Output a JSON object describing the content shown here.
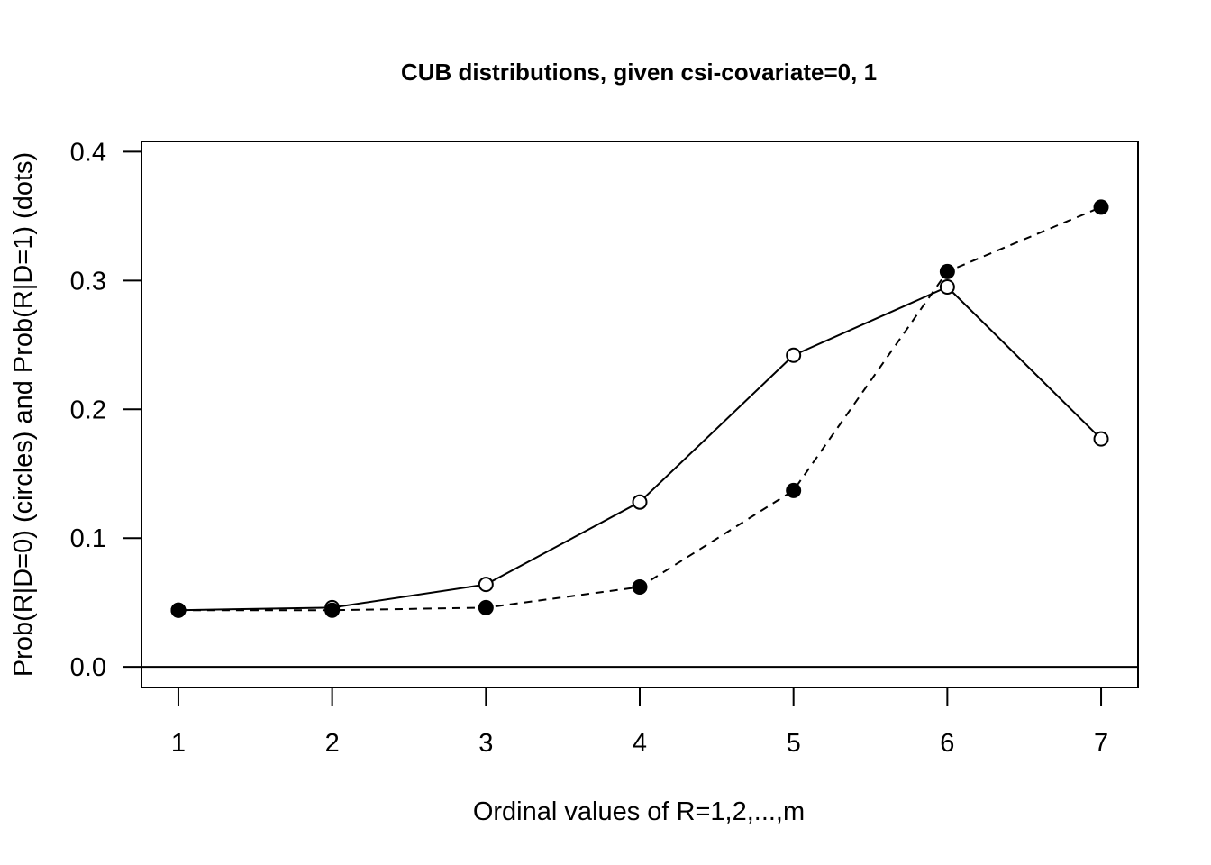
{
  "chart_data": {
    "type": "line",
    "title": "CUB distributions, given csi-covariate=0, 1",
    "xlabel": "Ordinal values of R=1,2,...,m",
    "ylabel": "Prob(R|D=0) (circles) and  Prob(R|D=1) (dots)",
    "x": [
      1,
      2,
      3,
      4,
      5,
      6,
      7
    ],
    "x_tick_labels": [
      "1",
      "2",
      "3",
      "4",
      "5",
      "6",
      "7"
    ],
    "y_ticks": [
      0.0,
      0.1,
      0.2,
      0.3,
      0.4
    ],
    "y_tick_labels": [
      "0.0",
      "0.1",
      "0.2",
      "0.3",
      "0.4"
    ],
    "xlim": [
      0.76,
      7.24
    ],
    "ylim": [
      -0.016,
      0.408
    ],
    "grid": false,
    "legend": "none",
    "reference_line_y": 0,
    "series": [
      {
        "marker": "open-circle",
        "line_style": "solid",
        "color": "#000000",
        "values": [
          0.044,
          0.046,
          0.064,
          0.128,
          0.242,
          0.295,
          0.177
        ]
      },
      {
        "marker": "filled-dot",
        "line_style": "dashed",
        "color": "#000000",
        "values": [
          0.044,
          0.044,
          0.046,
          0.062,
          0.137,
          0.307,
          0.357
        ]
      }
    ]
  }
}
